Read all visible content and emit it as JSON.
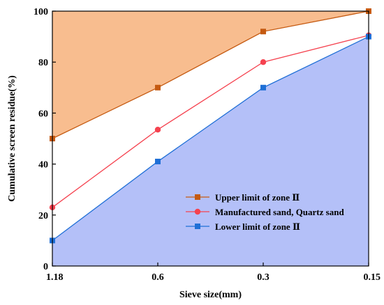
{
  "chart_data": {
    "type": "line",
    "xlabel": "Sieve size(mm)",
    "ylabel": "Cumulative screen residue(%)",
    "categories": [
      "1.18",
      "0.6",
      "0.3",
      "0.15"
    ],
    "ylim": [
      0,
      100
    ],
    "yticks": [
      0,
      20,
      40,
      60,
      80,
      100
    ],
    "grid": false,
    "legend_position": "bottom-right",
    "series": [
      {
        "name": "Upper limit of zone Ⅱ",
        "values": [
          50,
          70,
          92,
          100
        ],
        "marker": "square",
        "color": "#c55a11",
        "fill": "above",
        "fill_color": "#f8bd8f"
      },
      {
        "name": "Manufactured sand, Quartz sand",
        "values": [
          23,
          53.5,
          80,
          90.5
        ],
        "marker": "circle",
        "color": "#f5424f"
      },
      {
        "name": "Lower limit of zone Ⅱ",
        "values": [
          10,
          41,
          70,
          90
        ],
        "marker": "square",
        "color": "#1f6fd6",
        "fill": "below",
        "fill_color": "#b4c0f8"
      }
    ]
  }
}
